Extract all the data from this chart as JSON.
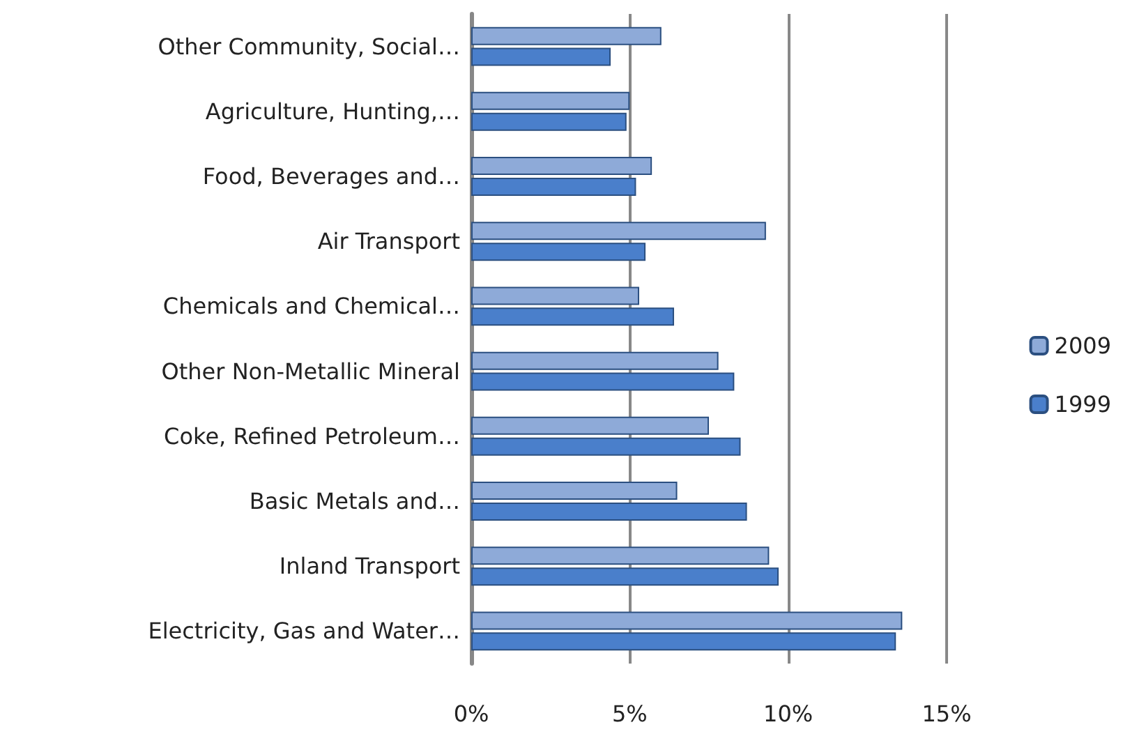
{
  "chart_data": {
    "type": "bar",
    "orientation": "horizontal",
    "categories": [
      "Other Community, Social…",
      "Agriculture, Hunting,…",
      "Food, Beverages and…",
      "Air Transport",
      "Chemicals and Chemical…",
      "Other Non-Metallic Mineral",
      "Coke, Refined Petroleum…",
      "Basic Metals and…",
      "Inland Transport",
      "Electricity, Gas and Water…"
    ],
    "series": [
      {
        "name": "2009",
        "color": "#8eaad8",
        "values": [
          6.0,
          5.0,
          5.7,
          9.3,
          5.3,
          7.8,
          7.5,
          6.5,
          9.4,
          13.6
        ]
      },
      {
        "name": "1999",
        "color": "#4a7fcb",
        "values": [
          4.4,
          4.9,
          5.2,
          5.5,
          6.4,
          8.3,
          8.5,
          8.7,
          9.7,
          13.4
        ]
      }
    ],
    "xlim": [
      0,
      15
    ],
    "xticks": [
      {
        "value": 0,
        "label": "0%"
      },
      {
        "value": 5,
        "label": "5%"
      },
      {
        "value": 10,
        "label": "10%"
      },
      {
        "value": 15,
        "label": "15%"
      }
    ],
    "grid": "x",
    "legend": "right"
  }
}
